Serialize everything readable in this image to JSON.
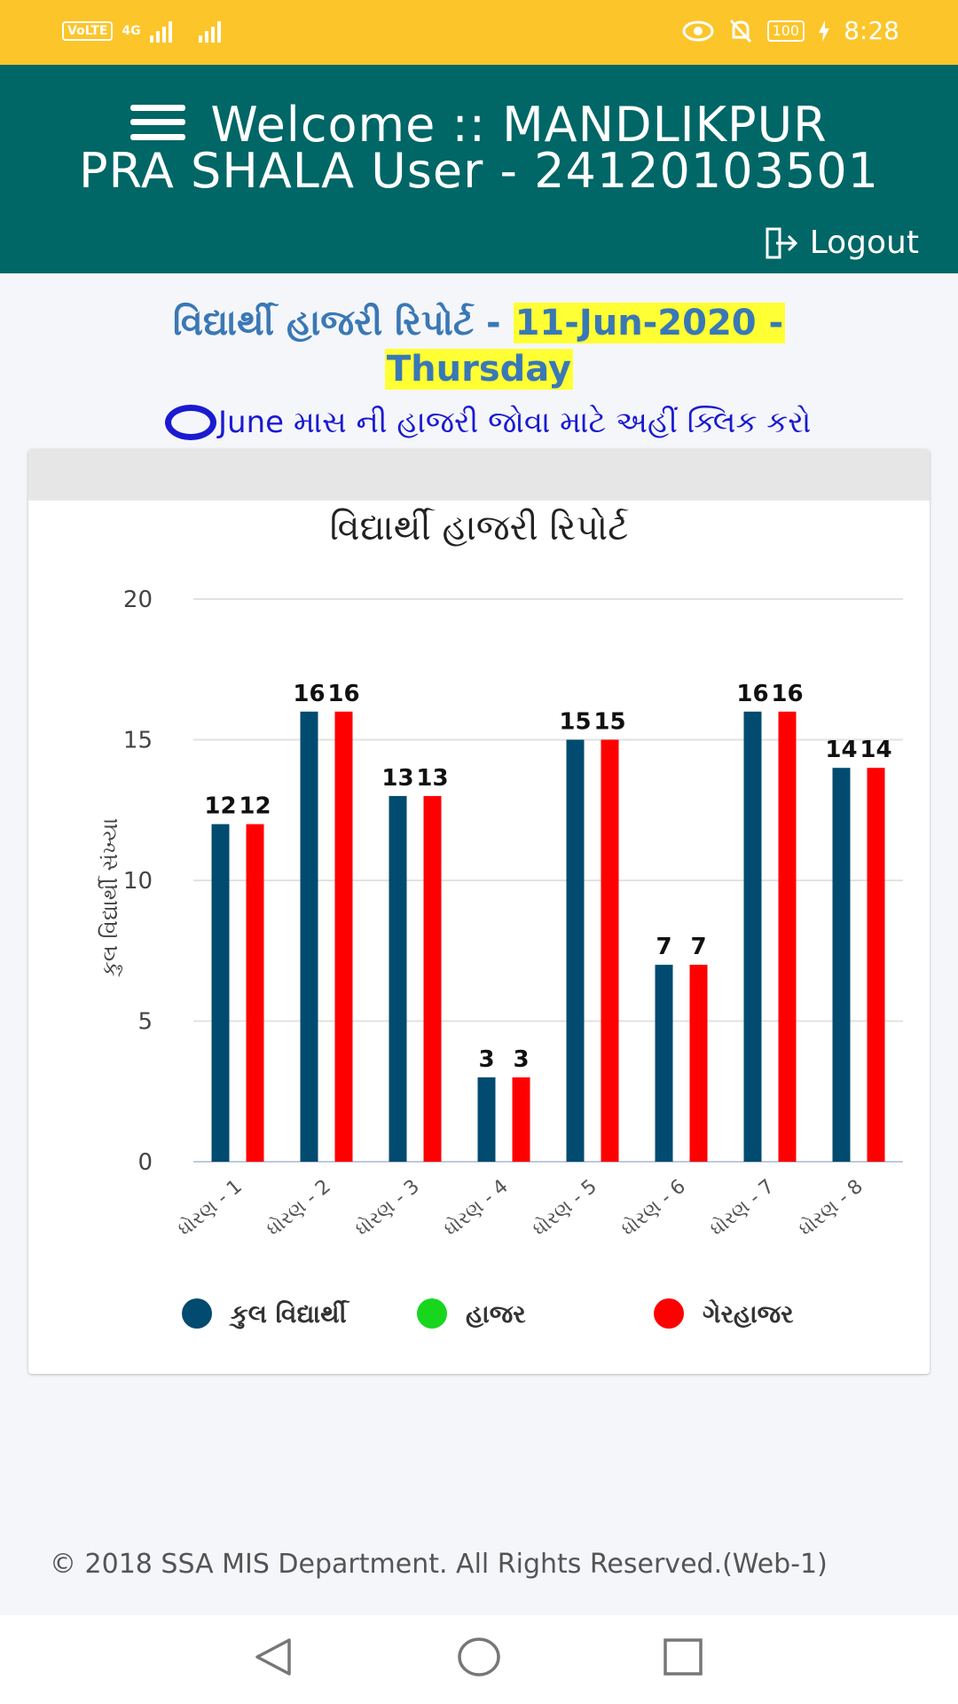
{
  "status_bar": {
    "volte": "VoLTE",
    "network": "4G",
    "battery": "100",
    "time": "8:28"
  },
  "app_bar": {
    "title_line1": "Welcome :: MANDLIKPUR",
    "title_line2": "PRA SHALA User - 24120103501",
    "logout_label": "Logout"
  },
  "report": {
    "heading": "વિદ્યાર્થી હાજરી રિપોર્ટ",
    "separator": " - ",
    "date_part1": "11-Jun-2020 -",
    "date_part2": "Thursday",
    "month_link": "June માસ ની હાજરી જોવા માટે અહીં ક્લિક કરો"
  },
  "chart_data": {
    "type": "bar",
    "title": "વિદ્યાર્થી હાજરી રિપોર્ટ",
    "ylabel": "કુલ વિદ્યાર્થી સંખ્યા",
    "ylim": [
      0,
      20
    ],
    "yticks": [
      "0",
      "5",
      "10",
      "15",
      "20"
    ],
    "categories": [
      "ધોરણ - 1",
      "ધોરણ - 2",
      "ધોરણ - 3",
      "ધોરણ - 4",
      "ધોરણ - 5",
      "ધોરણ - 6",
      "ધોરણ - 7",
      "ધોરણ - 8"
    ],
    "series": [
      {
        "name": "કુલ વિદ્યાર્થી",
        "color": "#004b6f",
        "values": [
          12,
          16,
          13,
          3,
          15,
          7,
          16,
          14
        ]
      },
      {
        "name": "હાજર",
        "color": "#18d61e",
        "values": [
          0,
          0,
          0,
          0,
          0,
          0,
          0,
          0
        ]
      },
      {
        "name": "ગેરહાજર",
        "color": "#ff0000",
        "values": [
          12,
          16,
          13,
          3,
          15,
          7,
          16,
          14
        ]
      }
    ],
    "legend": "bottom",
    "grid": true
  },
  "footer": {
    "copyright": "© 2018 SSA MIS Department. All Rights Reserved.(Web-1)"
  }
}
